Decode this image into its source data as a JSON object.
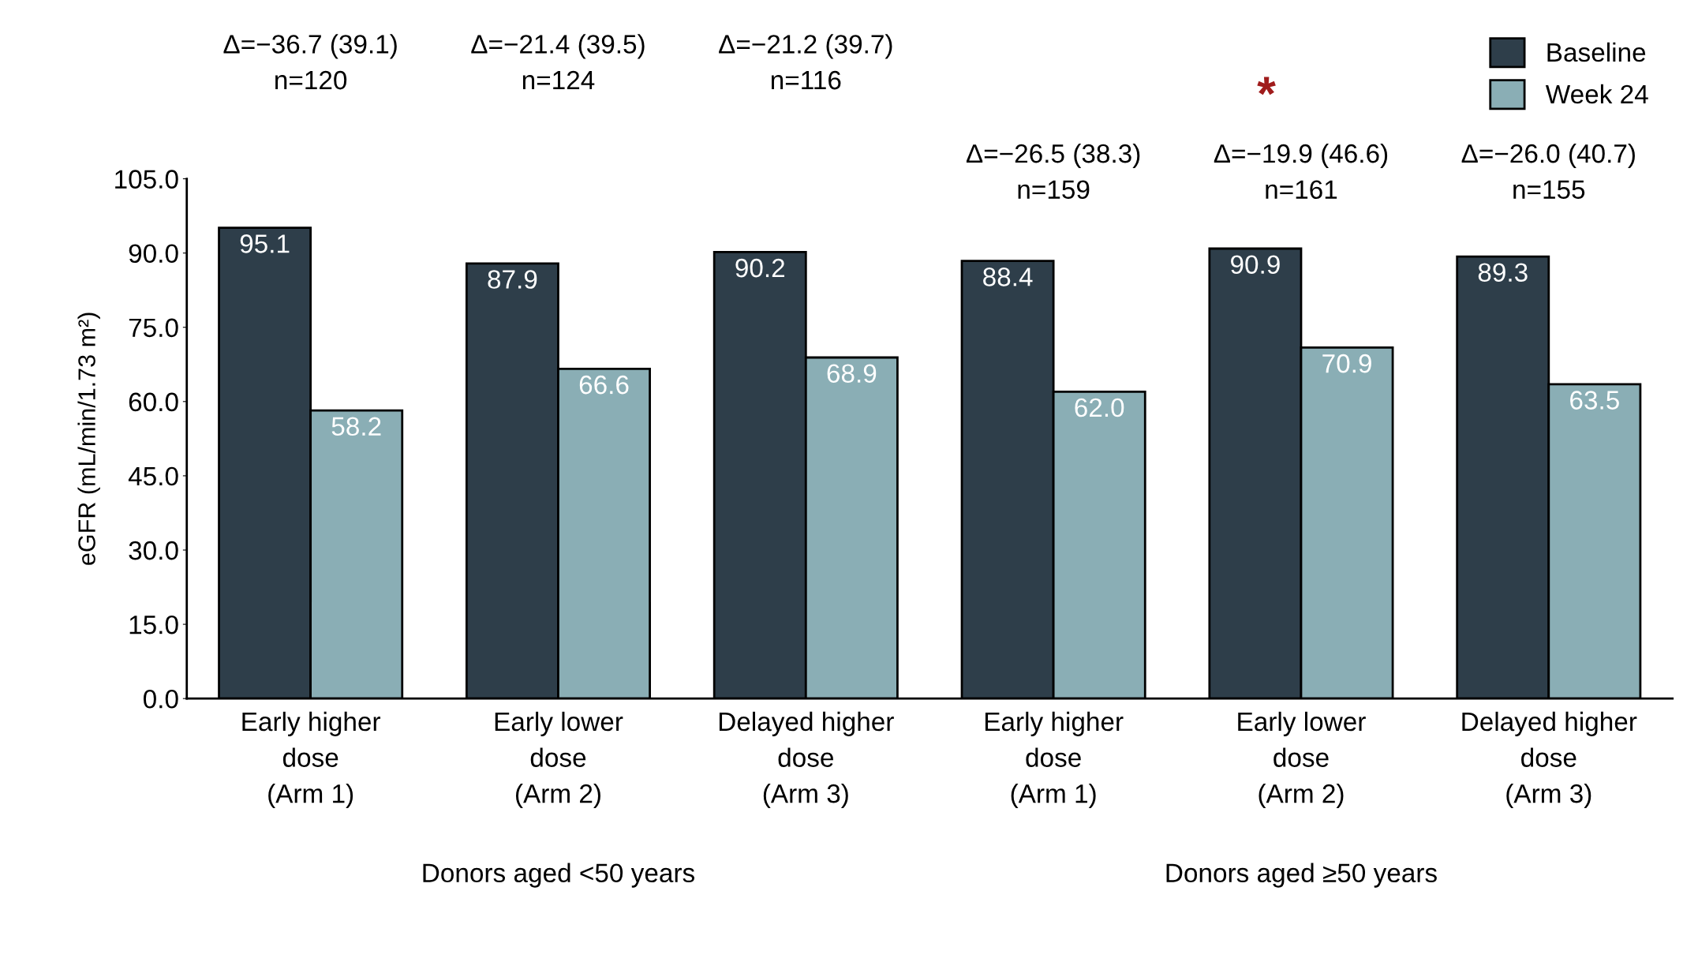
{
  "chart_data": {
    "type": "bar",
    "ylabel": "eGFR (mL/min/1.73 m²)",
    "categories": [
      "Early higher\ndose\n(Arm 1)",
      "Early lower\ndose\n(Arm 2)",
      "Delayed higher\ndose\n(Arm 3)",
      "Early higher\ndose\n(Arm 1)",
      "Early lower\ndose\n(Arm 2)",
      "Delayed higher\ndose\n(Arm 3)"
    ],
    "series": [
      {
        "name": "Baseline",
        "color": "#2e3e4a",
        "values": [
          95.1,
          87.9,
          90.2,
          88.4,
          90.9,
          89.3
        ],
        "value_labels": [
          "95.1",
          "87.9",
          "90.2",
          "88.4",
          "90.9",
          "89.3"
        ]
      },
      {
        "name": "Week 24",
        "color": "#8aaeb5",
        "values": [
          58.2,
          66.6,
          68.9,
          62.0,
          70.9,
          63.5
        ],
        "value_labels": [
          "58.2",
          "66.6",
          "68.9",
          "62.0",
          "70.9",
          "63.5"
        ]
      }
    ],
    "ylim": [
      0,
      105
    ],
    "yticks": [
      {
        "value": 0,
        "label": "0.0"
      },
      {
        "value": 15,
        "label": "15.0"
      },
      {
        "value": 30,
        "label": "30.0"
      },
      {
        "value": 45,
        "label": "45.0"
      },
      {
        "value": 60,
        "label": "60.0"
      },
      {
        "value": 75,
        "label": "75.0"
      },
      {
        "value": 90,
        "label": "90.0"
      },
      {
        "value": 105,
        "label": "105.0"
      }
    ],
    "annotations": [
      "Δ=−36.7 (39.1)\nn=120",
      "Δ=−21.4 (39.5)\nn=124",
      "Δ=−21.2 (39.7)\nn=116",
      "Δ=−26.5 (38.3)\nn=159",
      "Δ=−19.9 (46.6)\nn=161",
      "Δ=−26.0 (40.7)\nn=155",
      "*",
      "Donors aged <50 years",
      "Donors aged ≥50 years"
    ],
    "grid": false,
    "legend": "top right"
  }
}
